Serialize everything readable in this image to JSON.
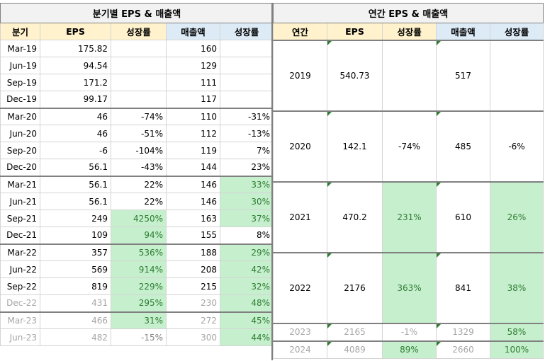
{
  "quarterly": {
    "title": "분기별 EPS & 매출액",
    "headers": [
      "분기",
      "EPS",
      "성장률",
      "매출액",
      "성장률"
    ],
    "rows": [
      [
        "Mar-19",
        "175.82",
        "",
        "160",
        ""
      ],
      [
        "Jun-19",
        "94.54",
        "",
        "129",
        ""
      ],
      [
        "Sep-19",
        "171.2",
        "",
        "111",
        ""
      ],
      [
        "Dec-19",
        "99.17",
        "",
        "117",
        ""
      ],
      [
        "Mar-20",
        "46",
        "-74%",
        "110",
        "-31%"
      ],
      [
        "Jun-20",
        "46",
        "-51%",
        "112",
        "-13%"
      ],
      [
        "Sep-20",
        "-6",
        "-104%",
        "119",
        "7%"
      ],
      [
        "Dec-20",
        "56.1",
        "-43%",
        "144",
        "23%"
      ],
      [
        "Mar-21",
        "56.1",
        "22%",
        "146",
        "33%"
      ],
      [
        "Jun-21",
        "56.1",
        "22%",
        "146",
        "30%"
      ],
      [
        "Sep-21",
        "249",
        "4250%",
        "163",
        "37%"
      ],
      [
        "Dec-21",
        "109",
        "94%",
        "155",
        "8%"
      ],
      [
        "Mar-22",
        "357",
        "536%",
        "188",
        "29%"
      ],
      [
        "Jun-22",
        "569",
        "914%",
        "208",
        "42%"
      ],
      [
        "Sep-22",
        "819",
        "229%",
        "215",
        "32%"
      ],
      [
        "Dec-22",
        "431",
        "295%",
        "230",
        "48%"
      ],
      [
        "Mar-23",
        "466",
        "31%",
        "272",
        "45%"
      ],
      [
        "Jun-23",
        "482",
        "-15%",
        "300",
        "44%"
      ]
    ]
  },
  "annual": {
    "title": "연간 EPS & 매출액",
    "headers": [
      "연간",
      "EPS",
      "성장률",
      "매출액",
      "성장률"
    ],
    "rows": [
      [
        "2019",
        "540.73",
        "",
        "517",
        ""
      ],
      [
        "2020",
        "142.1",
        "-74%",
        "485",
        "-6%"
      ],
      [
        "2021",
        "470.2",
        "231%",
        "610",
        "26%"
      ],
      [
        "2022",
        "2176",
        "363%",
        "841",
        "38%"
      ],
      [
        "2023",
        "2165",
        "-1%",
        "1329",
        "58%"
      ],
      [
        "2024",
        "4089",
        "89%",
        "2660",
        "100%"
      ]
    ]
  },
  "colors": {
    "header_yellow": "#fff2cc",
    "header_blue": "#ddebf7",
    "positive_fill": "#c6efce",
    "positive_text": "#2e7d32"
  }
}
